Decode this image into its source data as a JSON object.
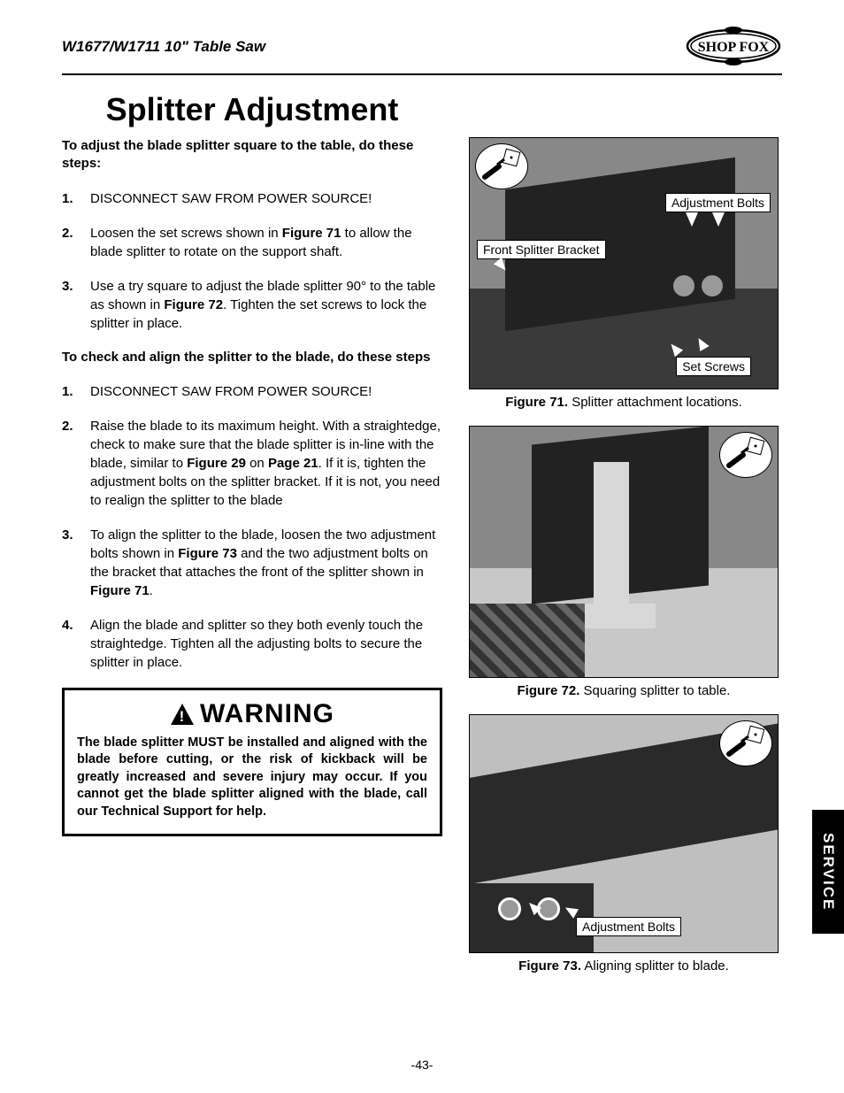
{
  "header": {
    "product_title": "W1677/W1711 10\" Table Saw",
    "logo_text": "SHOP FOX"
  },
  "title": "Splitter Adjustment",
  "section1": {
    "lead": "To adjust the blade splitter square to the table, do these steps:",
    "steps": [
      "DISCONNECT SAW FROM POWER SOURCE!",
      "Loosen the set screws shown in <b>Figure 71</b> to allow the blade splitter to rotate on the support shaft.",
      "Use a try square to adjust the blade splitter 90° to the table as shown in <b>Figure 72</b>. Tighten the set screws to lock the splitter in place."
    ]
  },
  "section2": {
    "lead": "To check and align the splitter to the blade, do these steps",
    "steps": [
      "DISCONNECT SAW FROM POWER SOURCE!",
      "Raise the blade to its maximum height. With a straightedge, check to make sure that the blade splitter is in-line with the blade, similar to <b>Figure 29</b> on <b>Page 21</b>. If it is, tighten the adjustment bolts on the splitter bracket. If it is not, you need to realign the splitter to the blade",
      "To align the splitter to the blade, loosen the two adjustment bolts shown in <b>Figure 73</b> and the two adjustment bolts on the bracket that attaches the front of the splitter shown in <b>Figure 71</b>.",
      "Align the blade and splitter so they both evenly touch the straightedge. Tighten all the adjusting bolts to secure the splitter in place."
    ]
  },
  "warning": {
    "heading": "WARNING",
    "text": "The blade splitter MUST be installed and aligned with the blade before cutting, or the risk of kickback will be greatly increased and severe injury may occur. If you cannot get the blade splitter aligned with the blade, call our Technical Support for help."
  },
  "figures": {
    "fig71": {
      "caption_label": "Figure 71.",
      "caption_text": " Splitter attachment locations.",
      "callouts": {
        "adj_bolts": "Adjustment Bolts",
        "front_bracket": "Front Splitter Bracket",
        "set_screws": "Set Screws"
      }
    },
    "fig72": {
      "caption_label": "Figure 72.",
      "caption_text": " Squaring splitter to table."
    },
    "fig73": {
      "caption_label": "Figure 73.",
      "caption_text": " Aligning splitter to blade.",
      "callouts": {
        "adj_bolts": "Adjustment Bolts"
      }
    }
  },
  "side_tab": "SERVICE",
  "page_number": "-43-"
}
